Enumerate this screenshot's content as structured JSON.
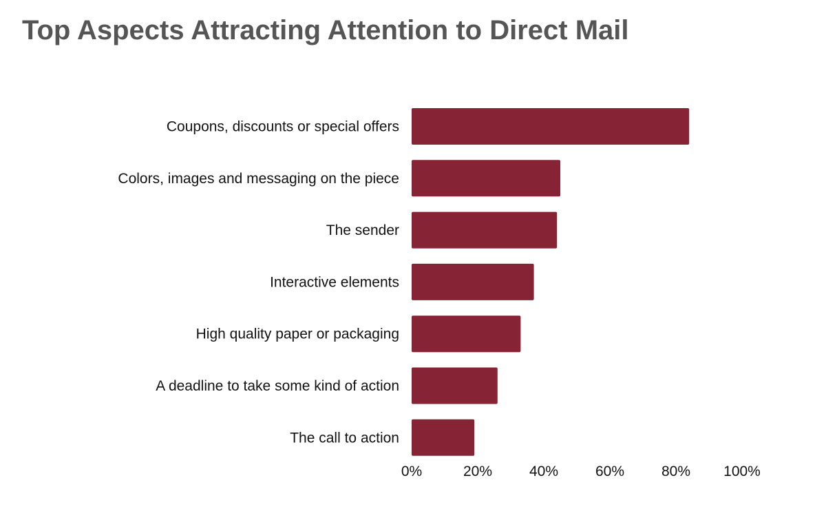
{
  "title": "Top Aspects Attracting Attention to Direct Mail",
  "chart_data": {
    "type": "bar",
    "orientation": "horizontal",
    "title": "Top Aspects Attracting Attention to Direct Mail",
    "categories": [
      "Coupons, discounts or special offers",
      "Colors, images and messaging on the piece",
      "The sender",
      "Interactive elements",
      "High quality paper or packaging",
      "A deadline to take some kind of action",
      "The call to action"
    ],
    "values": [
      84,
      45,
      44,
      37,
      33,
      26,
      19
    ],
    "xlim": [
      0,
      100
    ],
    "xticks": [
      "0%",
      "20%",
      "40%",
      "60%",
      "80%",
      "100%"
    ],
    "tick_values": [
      0,
      20,
      40,
      60,
      80,
      100
    ],
    "bar_color": "#862334",
    "grid": false,
    "legend": "none"
  }
}
